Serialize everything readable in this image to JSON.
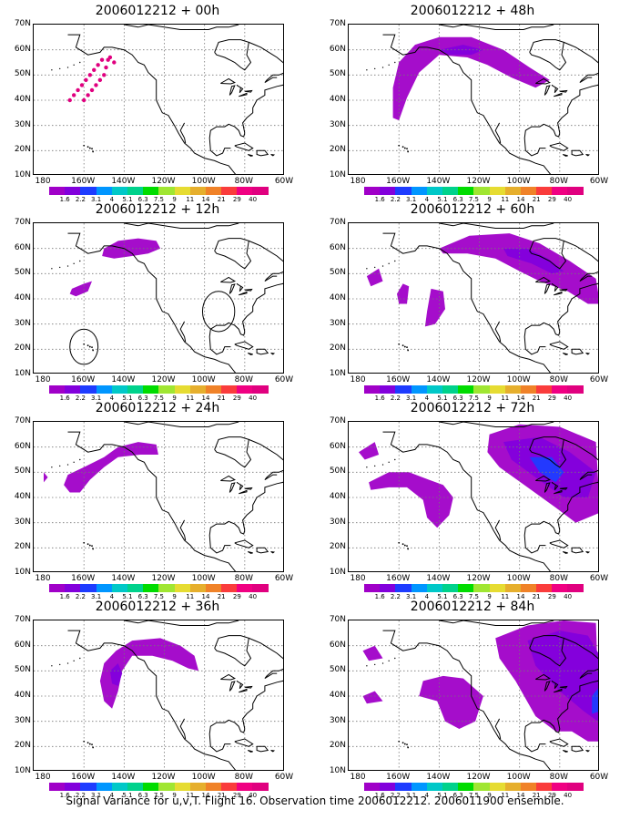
{
  "caption": "Signal Variance for u,v,T. Flight 16. Observation time 2006012212. 2006011900 ensemble.",
  "lat_labels": [
    "70N",
    "60N",
    "50N",
    "40N",
    "30N",
    "20N",
    "10N"
  ],
  "lon_labels": [
    "180",
    "160W",
    "140W",
    "120W",
    "100W",
    "80W",
    "60W"
  ],
  "colorbar": {
    "labels": [
      "1.6",
      "2.2",
      "3.1",
      "4",
      "5.1",
      "6.3",
      "7.5",
      "9",
      "11",
      "14",
      "21",
      "29",
      "40"
    ],
    "colors": [
      "#a000c8",
      "#8200dc",
      "#1e3cff",
      "#0096ff",
      "#00c8c8",
      "#00d28c",
      "#00dc00",
      "#a0e632",
      "#e6dc32",
      "#e6af2d",
      "#f08228",
      "#fa3c3c",
      "#f00082",
      "#e0007f"
    ]
  },
  "chart_data": [
    {
      "type": "heatmap",
      "title": "2006012212 + 00h",
      "features": [
        {
          "kind": "dots",
          "color": "#e0007f",
          "points": [
            [
              -167,
              40
            ],
            [
              -165,
              42
            ],
            [
              -163,
              44
            ],
            [
              -161,
              46
            ],
            [
              -159,
              48
            ],
            [
              -157,
              50
            ],
            [
              -155,
              52
            ],
            [
              -153,
              54
            ],
            [
              -151,
              56
            ],
            [
              -160,
              40
            ],
            [
              -158,
              42
            ],
            [
              -156,
              44
            ],
            [
              -154,
              46
            ],
            [
              -152,
              48
            ],
            [
              -150,
              50
            ],
            [
              -149,
              53
            ],
            [
              -148,
              56
            ],
            [
              -147,
              57
            ],
            [
              -145,
              55
            ]
          ]
        }
      ]
    },
    {
      "type": "heatmap",
      "title": "2006012212 + 12h",
      "features": [
        {
          "kind": "blob",
          "level": "1.6",
          "points": [
            [
              -150,
              60
            ],
            [
              -143,
              63
            ],
            [
              -133,
              64
            ],
            [
              -124,
              63
            ],
            [
              -122,
              60
            ],
            [
              -128,
              58
            ],
            [
              -136,
              57
            ],
            [
              -145,
              56
            ],
            [
              -151,
              57
            ]
          ]
        },
        {
          "kind": "blob",
          "level": "1.6",
          "points": [
            [
              -166,
              44
            ],
            [
              -160,
              46
            ],
            [
              -156,
              47
            ],
            [
              -158,
              43
            ],
            [
              -164,
              41
            ],
            [
              -167,
              42
            ]
          ]
        },
        {
          "kind": "ring",
          "center": [
            -160,
            21
          ],
          "radius_deg": 7
        },
        {
          "kind": "ring",
          "center": [
            -93,
            35
          ],
          "radius_deg": 8
        }
      ]
    },
    {
      "type": "heatmap",
      "title": "2006012212 + 24h",
      "features": [
        {
          "kind": "blob",
          "level": "1.6",
          "points": [
            [
              -168,
              49
            ],
            [
              -160,
              52
            ],
            [
              -150,
              56
            ],
            [
              -143,
              60
            ],
            [
              -133,
              62
            ],
            [
              -124,
              61
            ],
            [
              -123,
              57
            ],
            [
              -132,
              57
            ],
            [
              -143,
              56
            ],
            [
              -150,
              52
            ],
            [
              -157,
              47
            ],
            [
              -162,
              42
            ],
            [
              -167,
              42
            ],
            [
              -170,
              45
            ]
          ]
        },
        {
          "kind": "blob",
          "level": "1.6",
          "points": [
            [
              -180,
              46
            ],
            [
              -178,
              48
            ],
            [
              -180,
              50
            ]
          ]
        }
      ]
    },
    {
      "type": "heatmap",
      "title": "2006012212 + 36h",
      "features": [
        {
          "kind": "blob",
          "level": "1.6",
          "points": [
            [
              -150,
              38
            ],
            [
              -152,
              46
            ],
            [
              -150,
              53
            ],
            [
              -144,
              58
            ],
            [
              -136,
              62
            ],
            [
              -122,
              63
            ],
            [
              -112,
              60
            ],
            [
              -105,
              56
            ],
            [
              -103,
              50
            ],
            [
              -108,
              51
            ],
            [
              -116,
              54
            ],
            [
              -126,
              56
            ],
            [
              -136,
              56
            ],
            [
              -141,
              50
            ],
            [
              -143,
              42
            ],
            [
              -146,
              35
            ]
          ]
        },
        {
          "kind": "blob",
          "level": "2.2",
          "points": [
            [
              -146,
              45
            ],
            [
              -147,
              50
            ],
            [
              -143,
              53
            ],
            [
              -141,
              49
            ],
            [
              -143,
              44
            ]
          ]
        }
      ]
    },
    {
      "type": "heatmap",
      "title": "2006012212 + 48h",
      "features": [
        {
          "kind": "blob",
          "level": "1.6",
          "points": [
            [
              -163,
              33
            ],
            [
              -163,
              45
            ],
            [
              -160,
              55
            ],
            [
              -152,
              62
            ],
            [
              -140,
              65
            ],
            [
              -124,
              65
            ],
            [
              -108,
              60
            ],
            [
              -95,
              53
            ],
            [
              -85,
              48
            ],
            [
              -92,
              45
            ],
            [
              -104,
              49
            ],
            [
              -116,
              54
            ],
            [
              -126,
              57
            ],
            [
              -140,
              58
            ],
            [
              -150,
              51
            ],
            [
              -156,
              41
            ],
            [
              -160,
              32
            ]
          ]
        },
        {
          "kind": "blob",
          "level": "2.2",
          "points": [
            [
              -140,
              60
            ],
            [
              -128,
              62
            ],
            [
              -118,
              60
            ],
            [
              -124,
              58
            ],
            [
              -135,
              58
            ]
          ]
        }
      ]
    },
    {
      "type": "heatmap",
      "title": "2006012212 + 60h",
      "features": [
        {
          "kind": "blob",
          "level": "1.6",
          "points": [
            [
              -140,
              60
            ],
            [
              -125,
              65
            ],
            [
              -105,
              66
            ],
            [
              -90,
              62
            ],
            [
              -75,
              55
            ],
            [
              -62,
              48
            ],
            [
              -60,
              38
            ],
            [
              -66,
              38
            ],
            [
              -76,
              43
            ],
            [
              -90,
              47
            ],
            [
              -100,
              51
            ],
            [
              -112,
              56
            ],
            [
              -126,
              58
            ],
            [
              -138,
              58
            ]
          ]
        },
        {
          "kind": "blob",
          "level": "2.2",
          "points": [
            [
              -108,
              60
            ],
            [
              -96,
              60
            ],
            [
              -86,
              56
            ],
            [
              -78,
              51
            ],
            [
              -84,
              50
            ],
            [
              -94,
              54
            ],
            [
              -106,
              57
            ]
          ]
        },
        {
          "kind": "blob",
          "level": "1.6",
          "points": [
            [
              -176,
              49
            ],
            [
              -170,
              52
            ],
            [
              -168,
              47
            ],
            [
              -174,
              45
            ]
          ]
        },
        {
          "kind": "blob",
          "level": "1.6",
          "points": [
            [
              -158,
              46
            ],
            [
              -155,
              45
            ],
            [
              -156,
              38
            ],
            [
              -160,
              38
            ],
            [
              -161,
              42
            ]
          ]
        },
        {
          "kind": "blob",
          "level": "1.6",
          "points": [
            [
              -144,
              44
            ],
            [
              -138,
              43
            ],
            [
              -137,
              36
            ],
            [
              -142,
              30
            ],
            [
              -147,
              29
            ],
            [
              -146,
              35
            ]
          ]
        }
      ]
    },
    {
      "type": "heatmap",
      "title": "2006012212 + 72h",
      "features": [
        {
          "kind": "blob",
          "level": "1.6",
          "points": [
            [
              -115,
              65
            ],
            [
              -100,
              69
            ],
            [
              -80,
              68
            ],
            [
              -62,
              62
            ],
            [
              -60,
              34
            ],
            [
              -72,
              30
            ],
            [
              -82,
              36
            ],
            [
              -96,
              44
            ],
            [
              -110,
              52
            ],
            [
              -116,
              58
            ]
          ]
        },
        {
          "kind": "blob",
          "level": "2.2",
          "points": [
            [
              -108,
              62
            ],
            [
              -90,
              64
            ],
            [
              -75,
              58
            ],
            [
              -62,
              50
            ],
            [
              -66,
              40
            ],
            [
              -78,
              40
            ],
            [
              -92,
              48
            ],
            [
              -104,
              55
            ]
          ]
        },
        {
          "kind": "blob",
          "level": "3.1",
          "points": [
            [
              -95,
              56
            ],
            [
              -84,
              56
            ],
            [
              -78,
              50
            ],
            [
              -82,
              46
            ],
            [
              -90,
              50
            ]
          ]
        },
        {
          "kind": "blob",
          "level": "1.6",
          "points": [
            [
              -175,
              46
            ],
            [
              -165,
              50
            ],
            [
              -155,
              50
            ],
            [
              -145,
              47
            ],
            [
              -138,
              45
            ],
            [
              -133,
              40
            ],
            [
              -135,
              33
            ],
            [
              -141,
              28
            ],
            [
              -146,
              32
            ],
            [
              -148,
              39
            ],
            [
              -156,
              44
            ],
            [
              -165,
              44
            ],
            [
              -174,
              43
            ]
          ]
        },
        {
          "kind": "blob",
          "level": "1.6",
          "points": [
            [
              -180,
              58
            ],
            [
              -172,
              62
            ],
            [
              -170,
              57
            ],
            [
              -177,
              55
            ]
          ]
        }
      ]
    },
    {
      "type": "heatmap",
      "title": "2006012212 + 84h",
      "features": [
        {
          "kind": "blob",
          "level": "1.6",
          "points": [
            [
              -112,
              63
            ],
            [
              -96,
              68
            ],
            [
              -78,
              70
            ],
            [
              -62,
              69
            ],
            [
              -60,
              22
            ],
            [
              -66,
              22
            ],
            [
              -74,
              26
            ],
            [
              -82,
              26
            ],
            [
              -92,
              32
            ],
            [
              -102,
              46
            ],
            [
              -110,
              55
            ]
          ]
        },
        {
          "kind": "blob",
          "level": "2.2",
          "points": [
            [
              -96,
              62
            ],
            [
              -80,
              66
            ],
            [
              -66,
              64
            ],
            [
              -60,
              56
            ],
            [
              -61,
              30
            ],
            [
              -68,
              34
            ],
            [
              -80,
              42
            ],
            [
              -92,
              52
            ]
          ]
        },
        {
          "kind": "blob",
          "level": "3.1",
          "points": [
            [
              -64,
              40
            ],
            [
              -60,
              44
            ],
            [
              -60,
              34
            ],
            [
              -64,
              33
            ]
          ]
        },
        {
          "kind": "blob",
          "level": "1.6",
          "points": [
            [
              -148,
              46
            ],
            [
              -138,
              48
            ],
            [
              -128,
              47
            ],
            [
              -118,
              40
            ],
            [
              -122,
              30
            ],
            [
              -130,
              27
            ],
            [
              -137,
              30
            ],
            [
              -141,
              38
            ],
            [
              -150,
              40
            ]
          ]
        },
        {
          "kind": "blob",
          "level": "1.6",
          "points": [
            [
              -178,
              58
            ],
            [
              -172,
              60
            ],
            [
              -168,
              55
            ],
            [
              -175,
              54
            ]
          ]
        },
        {
          "kind": "blob",
          "level": "1.6",
          "points": [
            [
              -178,
              40
            ],
            [
              -172,
              42
            ],
            [
              -168,
              38
            ],
            [
              -176,
              37
            ]
          ]
        }
      ]
    }
  ]
}
